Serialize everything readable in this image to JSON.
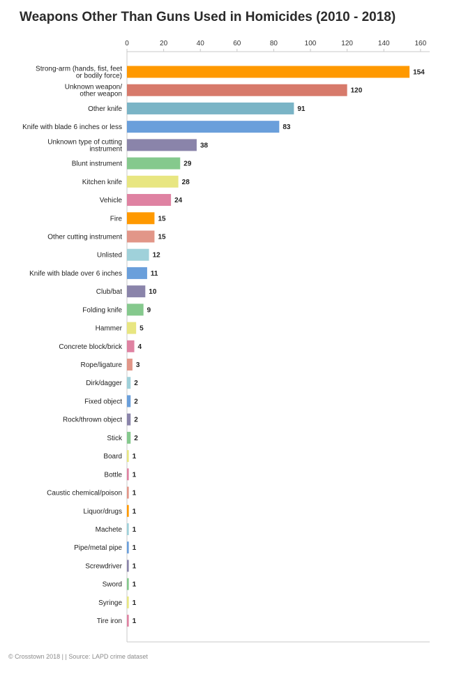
{
  "footer": "© Crosstown 2018 | | Source: LAPD crime dataset",
  "chart_data": {
    "type": "bar",
    "orientation": "horizontal",
    "title": "Weapons Other Than Guns Used in Homicides (2010 - 2018)",
    "xlabel": "",
    "ylabel": "",
    "xlim": [
      0,
      165
    ],
    "x_ticks": [
      0,
      20,
      40,
      60,
      80,
      100,
      120,
      140,
      160
    ],
    "x_axis_position": "top",
    "grid": false,
    "data_labels": true,
    "categories": [
      "Strong-arm (hands, fist, feet\nor bodily force)",
      "Unknown weapon/\nother weapon",
      "Other knife",
      "Knife with blade 6 inches or less",
      "Unknown type of cutting\ninstrument",
      "Blunt instrument",
      "Kitchen knife",
      "Vehicle",
      "Fire",
      "Other cutting instrument",
      "Unlisted",
      "Knife with blade over 6 inches",
      "Club/bat",
      "Folding knife",
      "Hammer",
      "Concrete block/brick",
      "Rope/ligature",
      "Dirk/dagger",
      "Fixed object",
      "Rock/thrown object",
      "Stick",
      "Board",
      "Bottle",
      "Caustic chemical/poison",
      "Liquor/drugs",
      "Machete",
      "Pipe/metal pipe",
      "Screwdriver",
      "Sword",
      "Syringe",
      "Tire iron"
    ],
    "values": [
      154,
      120,
      91,
      83,
      38,
      29,
      28,
      24,
      15,
      15,
      12,
      11,
      10,
      9,
      5,
      4,
      3,
      2,
      2,
      2,
      2,
      1,
      1,
      1,
      1,
      1,
      1,
      1,
      1,
      1,
      1
    ],
    "color_cycle": [
      "#ff9900",
      "#d77a6b",
      "#7ab4c6",
      "#6a9fdb",
      "#8a84aa",
      "#85c98d",
      "#e8e681",
      "#df82a2",
      "#ff9900",
      "#e29688",
      "#9fd1da",
      "#6a9fdb",
      "#8a84aa",
      "#85c98d",
      "#e8e681",
      "#df82a2",
      "#e29688",
      "#9fd1da",
      "#6a9fdb",
      "#8a84aa",
      "#85c98d",
      "#e8e681",
      "#df82a2",
      "#e29688",
      "#ff9900",
      "#9fd1da",
      "#6a9fdb",
      "#8a84aa",
      "#85c98d",
      "#e8e681",
      "#df82a2"
    ]
  }
}
